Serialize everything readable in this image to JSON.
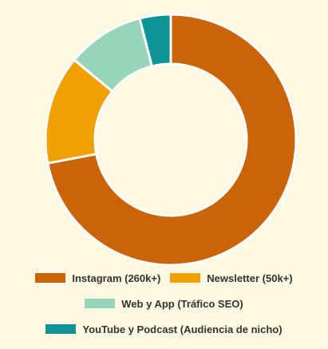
{
  "chart_data": {
    "type": "doughnut",
    "categories": [
      "Instagram (260k+)",
      "Newsletter (50k+)",
      "Web y App (Tráfico SEO)",
      "YouTube y Podcast (Audiencia de nicho)"
    ],
    "values": [
      72,
      14,
      10,
      4
    ],
    "colors": [
      "#c96508",
      "#f0a000",
      "#98d4bc",
      "#0d9494"
    ]
  }
}
